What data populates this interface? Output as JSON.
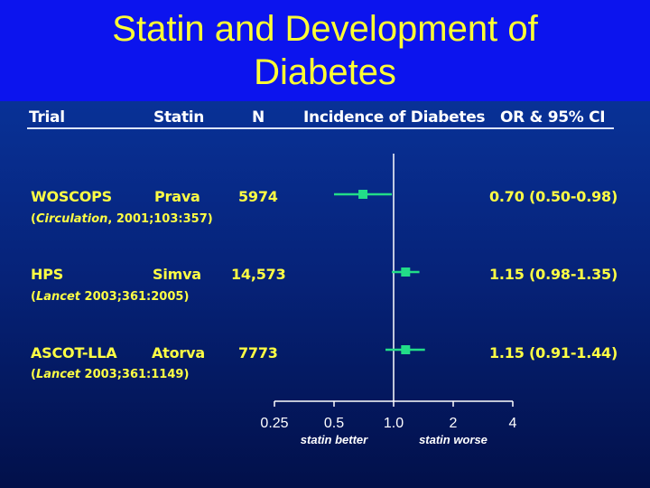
{
  "slide": {
    "title_line1": "Statin and Development of",
    "title_line2": "Diabetes"
  },
  "table": {
    "headers": {
      "trial": "Trial",
      "statin": "Statin",
      "n": "N",
      "incidence": "Incidence of Diabetes",
      "or_ci": "OR & 95% CI"
    },
    "rows": [
      {
        "trial": "WOSCOPS",
        "statin": "Prava",
        "n": "5974",
        "citation_journal": "Circulation",
        "citation_rest": ", 2001;103:357)",
        "or_ci_text": "0.70 (0.50-0.98)"
      },
      {
        "trial": "HPS",
        "statin": "Simva",
        "n": "14,573",
        "citation_journal": "Lancet",
        "citation_rest": " 2003;361:2005)",
        "or_ci_text": "1.15 (0.98-1.35)"
      },
      {
        "trial": "ASCOT-LLA",
        "statin": "Atorva",
        "n": "7773",
        "citation_journal": "Lancet",
        "citation_rest": " 2003;361:1149)",
        "or_ci_text": "1.15 (0.91-1.44)"
      }
    ]
  },
  "chart_data": {
    "type": "forest",
    "x_scale": "log",
    "xlim": [
      0.25,
      4
    ],
    "ticks": [
      0.25,
      0.5,
      1.0,
      2,
      4
    ],
    "tick_labels": [
      "0.25",
      "0.5",
      "1.0",
      "2",
      "4"
    ],
    "reference_line": 1.0,
    "left_label": "statin better",
    "right_label": "statin worse",
    "series": [
      {
        "trial": "WOSCOPS",
        "or": 0.7,
        "lo": 0.5,
        "hi": 0.98
      },
      {
        "trial": "HPS",
        "or": 1.15,
        "lo": 0.98,
        "hi": 1.35
      },
      {
        "trial": "ASCOT-LLA",
        "or": 1.15,
        "lo": 0.91,
        "hi": 1.44
      }
    ],
    "colors": {
      "point": "#22dd88",
      "ci": "#22dd88",
      "axis": "#ffffff"
    }
  }
}
